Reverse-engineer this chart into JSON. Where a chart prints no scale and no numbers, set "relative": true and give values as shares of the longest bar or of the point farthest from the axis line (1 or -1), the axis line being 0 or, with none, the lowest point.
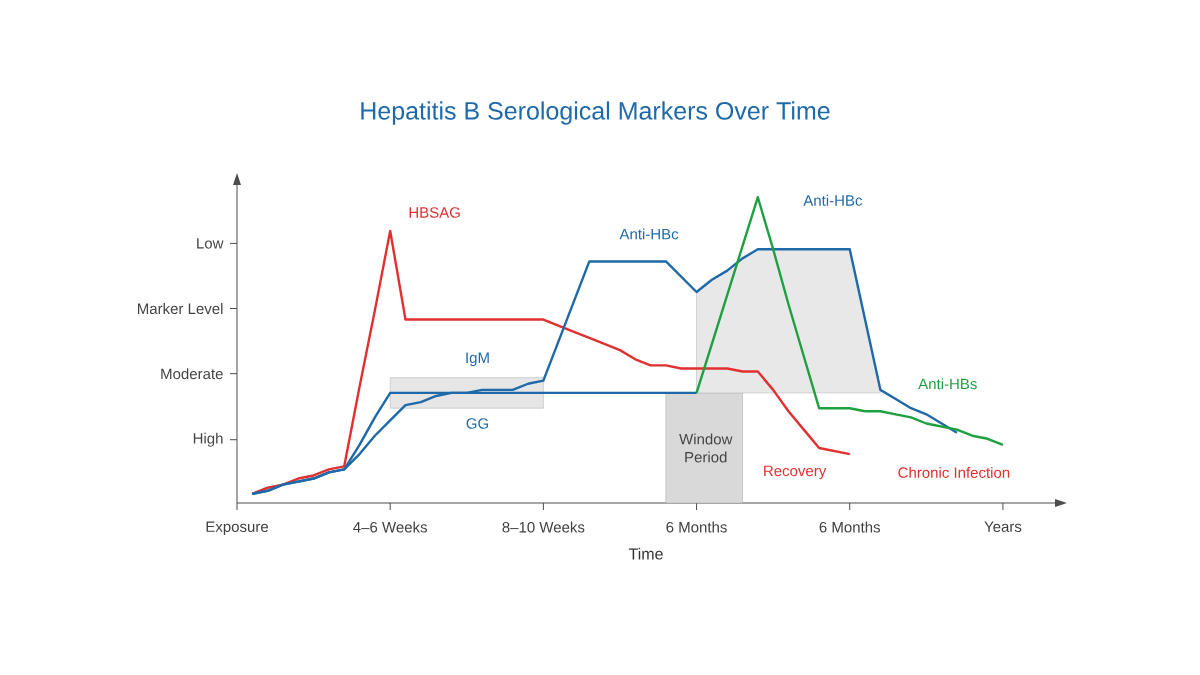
{
  "chart_data": {
    "type": "line",
    "title": "Hepatitis B Serological Markers Over Time",
    "xlabel": "Time",
    "relative": true,
    "categories": [
      "Exposure",
      null,
      null,
      null,
      null,
      null,
      null,
      null,
      null,
      null,
      "4–6 Weeks",
      null,
      null,
      null,
      null,
      null,
      null,
      null,
      null,
      null,
      "8–10 Weeks",
      null,
      null,
      null,
      null,
      null,
      null,
      null,
      null,
      null,
      "6 Months",
      null,
      null,
      null,
      null,
      null,
      null,
      null,
      null,
      null,
      "6 Months",
      null,
      null,
      null,
      null,
      null,
      null,
      null,
      null,
      null,
      "Years",
      null,
      null,
      null
    ],
    "series": [
      {
        "color": "#e6e6e6",
        "values": [
          null,
          null,
          null,
          null,
          null,
          null,
          null,
          null,
          null,
          null,
          null,
          null,
          null,
          null,
          null,
          null,
          null,
          null,
          null,
          null,
          null,
          null,
          null,
          null,
          null,
          null,
          null,
          null,
          null,
          null,
          null,
          null,
          null,
          null,
          null,
          null,
          null,
          null,
          null,
          null,
          null,
          null,
          null,
          null,
          null,
          null,
          null,
          null,
          null,
          null,
          null,
          null,
          null,
          null
        ],
        "upper": [
          null,
          null,
          null,
          null,
          null,
          null,
          null,
          null,
          null,
          null,
          0.41,
          0.41,
          0.41,
          0.41,
          0.41,
          0.41,
          0.41,
          0.41,
          0.41,
          0.41,
          0.41,
          null,
          null,
          null,
          null,
          null,
          null,
          null,
          null,
          null,
          null,
          null,
          null,
          null,
          null,
          null,
          null,
          null,
          null,
          null,
          null,
          null,
          null,
          null,
          null,
          null,
          null,
          null,
          null,
          null,
          null,
          null,
          null,
          null
        ],
        "lower": [
          null,
          null,
          null,
          null,
          null,
          null,
          null,
          null,
          null,
          null,
          0.31,
          0.31,
          0.31,
          0.31,
          0.31,
          0.31,
          0.31,
          0.31,
          0.31,
          0.31,
          0.31,
          null,
          null,
          null,
          null,
          null,
          null,
          null,
          null,
          null,
          null,
          null,
          null,
          null,
          null,
          null,
          null,
          null,
          null,
          null,
          null,
          null,
          null,
          null,
          null,
          null,
          null,
          null,
          null,
          null,
          null,
          null,
          null,
          null
        ]
      },
      {
        "color": "#d9d9d9",
        "values": [
          null,
          null,
          null,
          null,
          null,
          null,
          null,
          null,
          null,
          null,
          null,
          null,
          null,
          null,
          null,
          null,
          null,
          null,
          null,
          null,
          null,
          null,
          null,
          null,
          null,
          null,
          null,
          null,
          null,
          null,
          null,
          null,
          null,
          null,
          null,
          null,
          null,
          null,
          null,
          null,
          null,
          null,
          null,
          null,
          null,
          null,
          null,
          null,
          null,
          null,
          null,
          null,
          null,
          null
        ],
        "upper": [
          null,
          null,
          null,
          null,
          null,
          null,
          null,
          null,
          null,
          null,
          null,
          null,
          null,
          null,
          null,
          null,
          null,
          null,
          null,
          null,
          null,
          null,
          null,
          null,
          null,
          null,
          null,
          null,
          0.36,
          0.36,
          0.36,
          0.36,
          0.36,
          0.36,
          null,
          null,
          null,
          null,
          null,
          null,
          null,
          null,
          null,
          null,
          null,
          null,
          null,
          null,
          null,
          null,
          null,
          null,
          null,
          null
        ],
        "lower": [
          null,
          null,
          null,
          null,
          null,
          null,
          null,
          null,
          null,
          null,
          null,
          null,
          null,
          null,
          null,
          null,
          null,
          null,
          null,
          null,
          null,
          null,
          null,
          null,
          null,
          null,
          null,
          null,
          0,
          0,
          0,
          0,
          0,
          0,
          null,
          null,
          null,
          null,
          null,
          null,
          null,
          null,
          null,
          null,
          null,
          null,
          null,
          null,
          null,
          null,
          null,
          null,
          null,
          null
        ]
      },
      {
        "color": "#e8e8e8",
        "values": [
          null,
          null,
          null,
          null,
          null,
          null,
          null,
          null,
          null,
          null,
          null,
          null,
          null,
          null,
          null,
          null,
          null,
          null,
          null,
          null,
          null,
          null,
          null,
          null,
          null,
          null,
          null,
          null,
          null,
          null,
          null,
          null,
          null,
          null,
          null,
          null,
          null,
          null,
          null,
          null,
          null,
          null,
          null,
          null,
          null,
          null,
          null,
          null,
          null,
          null,
          null,
          null,
          null,
          null
        ],
        "upper": [
          null,
          null,
          null,
          null,
          null,
          null,
          null,
          null,
          null,
          null,
          null,
          null,
          null,
          null,
          null,
          null,
          null,
          null,
          null,
          null,
          null,
          null,
          null,
          null,
          null,
          null,
          null,
          null,
          null,
          null,
          0.69,
          0.73,
          0.76,
          0.8,
          0.83,
          0.83,
          0.83,
          0.83,
          0.83,
          0.83,
          0.83,
          0.6,
          0.37,
          null,
          null,
          null,
          null,
          null,
          null,
          null,
          null,
          null,
          null,
          null
        ],
        "lower": [
          null,
          null,
          null,
          null,
          null,
          null,
          null,
          null,
          null,
          null,
          null,
          null,
          null,
          null,
          null,
          null,
          null,
          null,
          null,
          null,
          null,
          null,
          null,
          null,
          null,
          null,
          null,
          null,
          null,
          null,
          0.36,
          0.36,
          0.36,
          0.36,
          0.36,
          0.36,
          0.36,
          0.36,
          0.36,
          0.36,
          0.36,
          0.36,
          0.36,
          null,
          null,
          null,
          null,
          null,
          null,
          null,
          null,
          null,
          null,
          null
        ]
      },
      {
        "color": "#e03030",
        "values": [
          null,
          0.03,
          0.05,
          0.06,
          0.08,
          0.09,
          0.11,
          0.12,
          0.38,
          0.63,
          0.89,
          0.6,
          0.6,
          0.6,
          0.6,
          0.6,
          0.6,
          0.6,
          0.6,
          0.6,
          0.6,
          0.58,
          0.56,
          0.54,
          0.52,
          0.5,
          0.47,
          0.45,
          0.45,
          0.44,
          0.44,
          0.44,
          0.44,
          0.43,
          0.43,
          0.37,
          0.3,
          0.24,
          0.18,
          0.17,
          0.16,
          null,
          null,
          null,
          null,
          null,
          null,
          null,
          null,
          null,
          null,
          null,
          null,
          null
        ]
      },
      {
        "color": "#1f69a8",
        "values": [
          null,
          0.03,
          0.04,
          0.06,
          0.07,
          0.08,
          0.1,
          0.11,
          0.19,
          0.28,
          0.36,
          0.36,
          0.36,
          0.36,
          0.36,
          0.36,
          0.36,
          0.36,
          0.36,
          0.36,
          0.36,
          0.36,
          0.36,
          0.36,
          0.36,
          0.36,
          0.36,
          0.36,
          0.36,
          0.36,
          0.36,
          null,
          null,
          null,
          null,
          null,
          null,
          null,
          null,
          null,
          null,
          null,
          null,
          null,
          null,
          null,
          null,
          null,
          null,
          null,
          null,
          null,
          null,
          null
        ]
      },
      {
        "color": "#1f69a8",
        "values": [
          null,
          0.03,
          0.04,
          0.06,
          0.07,
          0.08,
          0.1,
          0.11,
          0.16,
          0.22,
          0.27,
          0.32,
          0.33,
          0.35,
          0.36,
          0.36,
          0.37,
          0.37,
          0.37,
          0.39,
          0.4,
          0.53,
          0.66,
          0.79,
          0.79,
          0.79,
          0.79,
          0.79,
          0.79,
          0.74,
          0.69,
          0.73,
          0.76,
          0.8,
          0.83,
          0.83,
          0.83,
          0.83,
          0.83,
          0.83,
          0.83,
          0.6,
          0.37,
          0.34,
          0.31,
          0.29,
          0.26,
          0.23,
          null,
          null,
          null,
          null,
          null,
          null
        ]
      },
      {
        "color": "#1fa040",
        "values": [
          null,
          null,
          null,
          null,
          null,
          null,
          null,
          null,
          null,
          null,
          null,
          null,
          null,
          null,
          null,
          null,
          null,
          null,
          null,
          null,
          null,
          null,
          null,
          null,
          null,
          null,
          null,
          null,
          null,
          null,
          0.36,
          0.52,
          0.68,
          0.84,
          1.0,
          0.83,
          0.65,
          0.48,
          0.31,
          0.31,
          0.31,
          0.3,
          0.3,
          0.29,
          0.28,
          0.26,
          0.25,
          0.24,
          0.22,
          0.21,
          0.19,
          null,
          null,
          null
        ]
      }
    ],
    "annotations": [
      "HBSAG",
      "Anti-HBc",
      "Anti-HBc",
      "IgM",
      "GG",
      "Anti-HBs",
      "Window Period",
      "Recovery",
      "Chronic Infection",
      "High",
      "Moderate",
      "Marker Level",
      "Low"
    ]
  }
}
